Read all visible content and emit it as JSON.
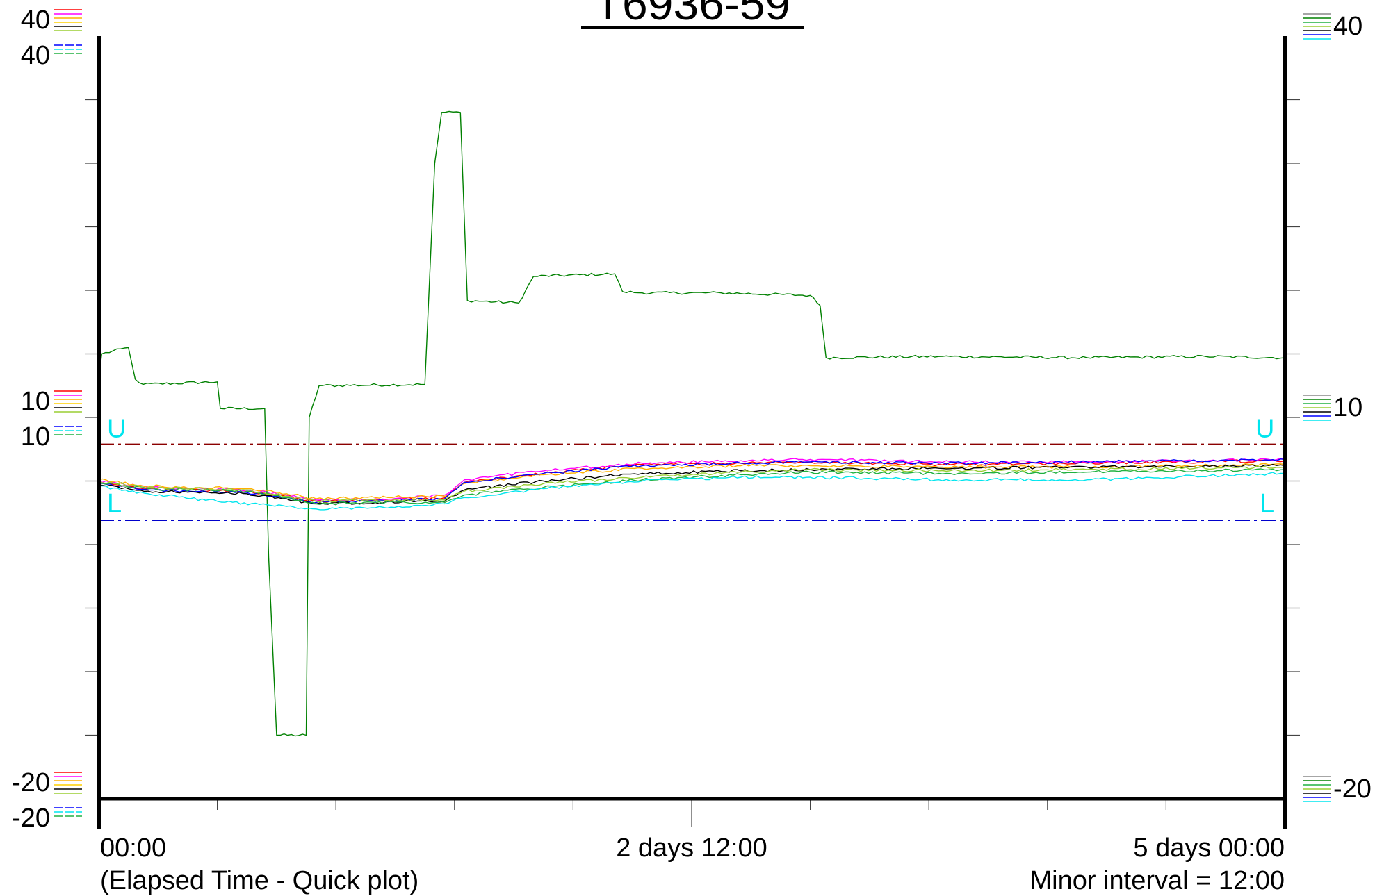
{
  "chart_data": {
    "type": "line",
    "title": "T6936-59",
    "x_axis": {
      "min_hours": 0,
      "max_hours": 120,
      "major_ticks": [
        {
          "hours": 0,
          "label": "00:00"
        },
        {
          "hours": 60,
          "label": "2 days  12:00"
        },
        {
          "hours": 120,
          "label": "5 days  00:00"
        }
      ],
      "minor_interval_hours": 12,
      "caption_left": "(Elapsed Time - Quick plot)",
      "caption_right": "Minor interval = 12:00"
    },
    "y_axis": {
      "min": -20,
      "max": 40,
      "left_labels": [
        {
          "value": 40,
          "text": "40",
          "level": "upper"
        },
        {
          "value": 40,
          "text": "40",
          "level": "lower"
        },
        {
          "value": 10,
          "text": "10",
          "level": "upper"
        },
        {
          "value": 10,
          "text": "10",
          "level": "lower"
        },
        {
          "value": -20,
          "text": "-20",
          "level": "upper"
        },
        {
          "value": -20,
          "text": "-20",
          "level": "lower"
        }
      ],
      "right_labels": [
        {
          "value": 40,
          "text": "40"
        },
        {
          "value": 10,
          "text": "10"
        },
        {
          "value": -20,
          "text": "-20"
        }
      ]
    },
    "limits": {
      "upper": {
        "value": 7.9,
        "label": "U",
        "color": "#8b0000"
      },
      "lower": {
        "value": 1.9,
        "label": "L",
        "color": "#0000cc"
      },
      "label_color": "#00e5ee"
    },
    "series": [
      {
        "color": "#008000",
        "points": [
          [
            0,
            13
          ],
          [
            0.3,
            15
          ],
          [
            3,
            15.5
          ],
          [
            3.7,
            13
          ],
          [
            4.5,
            12.6
          ],
          [
            12,
            12.8
          ],
          [
            12.3,
            10.7
          ],
          [
            16.8,
            10.7
          ],
          [
            17.2,
            -1
          ],
          [
            18,
            -15
          ],
          [
            21,
            -15
          ],
          [
            21.3,
            10
          ],
          [
            22.3,
            12.5
          ],
          [
            33,
            12.6
          ],
          [
            34,
            30
          ],
          [
            34.7,
            34
          ],
          [
            36.6,
            34
          ],
          [
            37.3,
            19.2
          ],
          [
            42.5,
            19
          ],
          [
            44,
            21.1
          ],
          [
            52.2,
            21.3
          ],
          [
            53,
            19.9
          ],
          [
            55,
            19.8
          ],
          [
            63,
            19.8
          ],
          [
            72,
            19.6
          ],
          [
            73,
            18.8
          ],
          [
            73.6,
            14.7
          ],
          [
            85,
            14.8
          ],
          [
            100,
            14.7
          ],
          [
            112,
            14.8
          ],
          [
            120,
            14.7
          ]
        ]
      },
      {
        "color": "#ff0000",
        "points": [
          [
            0,
            4.9
          ],
          [
            5,
            4.4
          ],
          [
            15,
            4.2
          ],
          [
            19,
            3.8
          ],
          [
            22,
            3.4
          ],
          [
            28,
            3.5
          ],
          [
            35,
            3.7
          ],
          [
            37,
            4.9
          ],
          [
            45,
            5.6
          ],
          [
            55,
            6.3
          ],
          [
            65,
            6.4
          ],
          [
            72,
            6.5
          ],
          [
            85,
            6.3
          ],
          [
            100,
            6.4
          ],
          [
            120,
            6.6
          ]
        ]
      },
      {
        "color": "#ff00ff",
        "points": [
          [
            0,
            5.0
          ],
          [
            5,
            4.5
          ],
          [
            15,
            4.3
          ],
          [
            19,
            3.9
          ],
          [
            22,
            3.5
          ],
          [
            28,
            3.6
          ],
          [
            35,
            3.9
          ],
          [
            37,
            5.1
          ],
          [
            45,
            5.8
          ],
          [
            55,
            6.4
          ],
          [
            65,
            6.6
          ],
          [
            72,
            6.7
          ],
          [
            85,
            6.5
          ],
          [
            100,
            6.5
          ],
          [
            120,
            6.7
          ]
        ]
      },
      {
        "color": "#ffb000",
        "points": [
          [
            0,
            5.1
          ],
          [
            5,
            4.6
          ],
          [
            15,
            4.4
          ],
          [
            19,
            4.0
          ],
          [
            22,
            3.6
          ],
          [
            28,
            3.7
          ],
          [
            35,
            3.8
          ],
          [
            37,
            4.8
          ],
          [
            45,
            5.5
          ],
          [
            55,
            6.0
          ],
          [
            65,
            6.2
          ],
          [
            72,
            6.2
          ],
          [
            85,
            6.1
          ],
          [
            100,
            6.1
          ],
          [
            120,
            6.3
          ]
        ]
      },
      {
        "color": "#0000ff",
        "points": [
          [
            0,
            4.8
          ],
          [
            5,
            4.3
          ],
          [
            15,
            4.1
          ],
          [
            19,
            3.7
          ],
          [
            22,
            3.3
          ],
          [
            28,
            3.4
          ],
          [
            35,
            3.6
          ],
          [
            37,
            4.9
          ],
          [
            45,
            5.6
          ],
          [
            55,
            6.2
          ],
          [
            65,
            6.4
          ],
          [
            72,
            6.5
          ],
          [
            85,
            6.4
          ],
          [
            100,
            6.5
          ],
          [
            120,
            6.7
          ]
        ]
      },
      {
        "color": "#000000",
        "points": [
          [
            0,
            4.7
          ],
          [
            5,
            4.2
          ],
          [
            15,
            4.0
          ],
          [
            19,
            3.6
          ],
          [
            22,
            3.2
          ],
          [
            28,
            3.3
          ],
          [
            35,
            3.4
          ],
          [
            37,
            4.3
          ],
          [
            45,
            5.0
          ],
          [
            55,
            5.6
          ],
          [
            65,
            5.8
          ],
          [
            72,
            5.9
          ],
          [
            85,
            6.0
          ],
          [
            100,
            6.1
          ],
          [
            120,
            6.2
          ]
        ]
      },
      {
        "color": "#20b040",
        "points": [
          [
            0,
            4.9
          ],
          [
            5,
            4.4
          ],
          [
            15,
            4.2
          ],
          [
            19,
            3.7
          ],
          [
            22,
            3.2
          ],
          [
            28,
            3.3
          ],
          [
            35,
            3.3
          ],
          [
            37,
            3.9
          ],
          [
            45,
            4.5
          ],
          [
            55,
            5.1
          ],
          [
            65,
            5.5
          ],
          [
            72,
            5.7
          ],
          [
            85,
            5.6
          ],
          [
            100,
            5.7
          ],
          [
            120,
            5.9
          ]
        ]
      },
      {
        "color": "#9acd32",
        "points": [
          [
            0,
            5.0
          ],
          [
            5,
            4.5
          ],
          [
            15,
            4.3
          ],
          [
            19,
            3.8
          ],
          [
            22,
            3.4
          ],
          [
            28,
            3.5
          ],
          [
            35,
            3.5
          ],
          [
            37,
            4.2
          ],
          [
            45,
            4.8
          ],
          [
            55,
            5.3
          ],
          [
            65,
            5.7
          ],
          [
            72,
            5.9
          ],
          [
            85,
            5.8
          ],
          [
            100,
            5.9
          ],
          [
            120,
            6.1
          ]
        ]
      },
      {
        "color": "#00e5ee",
        "points": [
          [
            0,
            4.6
          ],
          [
            5,
            4.0
          ],
          [
            12,
            3.4
          ],
          [
            19,
            3.0
          ],
          [
            22,
            2.8
          ],
          [
            28,
            2.9
          ],
          [
            35,
            3.2
          ],
          [
            37,
            3.7
          ],
          [
            45,
            4.4
          ],
          [
            55,
            5.0
          ],
          [
            65,
            5.3
          ],
          [
            72,
            5.3
          ],
          [
            85,
            5.1
          ],
          [
            100,
            5.1
          ],
          [
            120,
            5.6
          ]
        ]
      }
    ]
  }
}
